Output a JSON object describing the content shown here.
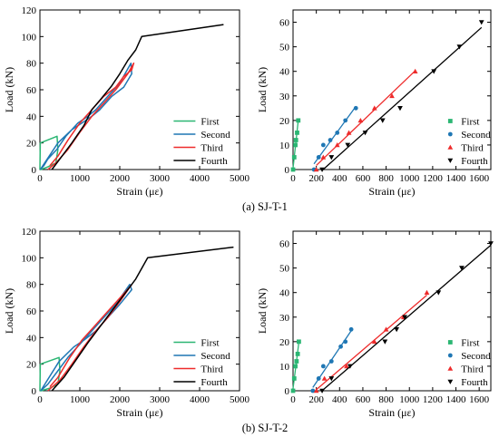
{
  "captions": [
    "(a) SJ-T-1",
    "(b) SJ-T-2"
  ],
  "colors": {
    "First": "#2bb673",
    "Second": "#1f77b4",
    "Third": "#ee2b2b",
    "Fourth": "#000000"
  },
  "chart_data": [
    {
      "type": "line",
      "panel": "a-left",
      "xlabel": "Strain (με)",
      "ylabel": "Load (kN)",
      "xlim": [
        0,
        5000
      ],
      "ylim": [
        0,
        120
      ],
      "xticks": [
        0,
        1000,
        2000,
        3000,
        4000,
        5000
      ],
      "yticks": [
        0,
        20,
        40,
        60,
        80,
        100,
        120
      ],
      "legend_position": "bottom-right",
      "series": [
        {
          "name": "First",
          "x": [
            0,
            10,
            430,
            450,
            400,
            200,
            20,
            0
          ],
          "y": [
            0,
            20,
            25,
            15,
            5,
            2,
            0,
            0
          ]
        },
        {
          "name": "Second",
          "x": [
            10,
            450,
            800,
            1050,
            1300,
            1500,
            1800,
            2100,
            2300,
            2280,
            2000,
            1700,
            1400,
            1200,
            950,
            650,
            420,
            200,
            100,
            10
          ],
          "y": [
            0,
            20,
            30,
            35,
            40,
            45,
            55,
            62,
            72,
            80,
            65,
            55,
            45,
            40,
            35,
            25,
            15,
            8,
            3,
            0
          ]
        },
        {
          "name": "Third",
          "x": [
            200,
            400,
            700,
            1000,
            1300,
            1600,
            1900,
            2200,
            2350,
            2300,
            2100,
            1900,
            1600,
            1300,
            1000,
            700,
            450,
            250
          ],
          "y": [
            0,
            5,
            15,
            28,
            40,
            50,
            60,
            72,
            80,
            75,
            70,
            62,
            55,
            45,
            35,
            22,
            10,
            3
          ]
        },
        {
          "name": "Fourth",
          "x": [
            300,
            500,
            800,
            1100,
            1300,
            1500,
            1800,
            2000,
            2200,
            2400,
            2550,
            4600
          ],
          "y": [
            0,
            8,
            20,
            33,
            45,
            52,
            63,
            72,
            82,
            90,
            100,
            109
          ]
        }
      ]
    },
    {
      "type": "scatter",
      "panel": "a-right",
      "xlabel": "Strain (με)",
      "ylabel": "Load (kN)",
      "xlim": [
        0,
        1700
      ],
      "ylim": [
        0,
        65
      ],
      "xticks": [
        0,
        200,
        400,
        600,
        800,
        1000,
        1200,
        1400,
        1600
      ],
      "yticks": [
        0,
        10,
        20,
        30,
        40,
        50,
        60
      ],
      "legend_position": "bottom-right",
      "series": [
        {
          "name": "First",
          "marker": "square",
          "x": [
            0,
            10,
            20,
            25,
            35,
            45
          ],
          "y": [
            0,
            5,
            10,
            12,
            15,
            20
          ]
        },
        {
          "name": "Second",
          "marker": "circle",
          "x": [
            180,
            220,
            260,
            320,
            380,
            450,
            540
          ],
          "y": [
            0,
            5,
            10,
            12,
            15,
            20,
            25
          ]
        },
        {
          "name": "Third",
          "marker": "triangle-up",
          "x": [
            200,
            260,
            380,
            480,
            580,
            700,
            850,
            1050
          ],
          "y": [
            0,
            5,
            10,
            15,
            20,
            25,
            30,
            40
          ]
        },
        {
          "name": "Fourth",
          "marker": "triangle-down",
          "x": [
            250,
            330,
            470,
            620,
            770,
            920,
            1210,
            1430,
            1620
          ],
          "y": [
            0,
            5,
            10,
            15,
            20,
            25,
            40,
            50,
            60
          ]
        }
      ]
    },
    {
      "type": "line",
      "panel": "b-left",
      "xlabel": "Strain (με)",
      "ylabel": "Load (kN)",
      "xlim": [
        0,
        5000
      ],
      "ylim": [
        0,
        120
      ],
      "xticks": [
        0,
        1000,
        2000,
        3000,
        4000,
        5000
      ],
      "yticks": [
        0,
        20,
        40,
        60,
        80,
        100,
        120
      ],
      "legend_position": "bottom-right",
      "series": [
        {
          "name": "First",
          "x": [
            0,
            10,
            480,
            500,
            450,
            250,
            30,
            0
          ],
          "y": [
            0,
            20,
            25,
            15,
            5,
            2,
            0,
            0
          ]
        },
        {
          "name": "Second",
          "x": [
            20,
            480,
            850,
            1100,
            1400,
            1700,
            2000,
            2300,
            2250,
            1900,
            1600,
            1300,
            1000,
            700,
            450,
            200,
            20
          ],
          "y": [
            0,
            22,
            33,
            38,
            45,
            55,
            65,
            76,
            80,
            65,
            55,
            45,
            35,
            25,
            15,
            5,
            0
          ]
        },
        {
          "name": "Third",
          "x": [
            200,
            500,
            800,
            1100,
            1400,
            1700,
            2000,
            2300,
            2250,
            1950,
            1650,
            1350,
            1050,
            750,
            450,
            250
          ],
          "y": [
            0,
            8,
            20,
            33,
            45,
            55,
            67,
            80,
            78,
            68,
            58,
            48,
            38,
            25,
            10,
            3
          ]
        },
        {
          "name": "Fourth",
          "x": [
            300,
            600,
            900,
            1200,
            1500,
            1800,
            2100,
            2400,
            2700,
            4850
          ],
          "y": [
            0,
            10,
            23,
            36,
            48,
            60,
            72,
            84,
            100,
            108
          ]
        }
      ]
    },
    {
      "type": "scatter",
      "panel": "b-right",
      "xlabel": "Strain (με)",
      "ylabel": "Load (kN)",
      "xlim": [
        0,
        1700
      ],
      "ylim": [
        0,
        65
      ],
      "xticks": [
        0,
        200,
        400,
        600,
        800,
        1000,
        1200,
        1400,
        1600
      ],
      "yticks": [
        0,
        10,
        20,
        30,
        40,
        50,
        60
      ],
      "legend_position": "bottom-right",
      "series": [
        {
          "name": "First",
          "marker": "square",
          "x": [
            0,
            10,
            20,
            30,
            40,
            50
          ],
          "y": [
            0,
            5,
            10,
            12,
            15,
            20
          ]
        },
        {
          "name": "Second",
          "marker": "circle",
          "x": [
            170,
            220,
            260,
            330,
            410,
            450,
            500
          ],
          "y": [
            0,
            5,
            10,
            12,
            18,
            20,
            25
          ]
        },
        {
          "name": "Third",
          "marker": "triangle-up",
          "x": [
            200,
            270,
            460,
            700,
            800,
            950,
            1150
          ],
          "y": [
            0,
            5,
            10,
            20,
            25,
            30,
            40
          ]
        },
        {
          "name": "Fourth",
          "marker": "triangle-down",
          "x": [
            250,
            330,
            490,
            790,
            890,
            960,
            1250,
            1450,
            1700
          ],
          "y": [
            0,
            5,
            10,
            20,
            25,
            30,
            40,
            50,
            60
          ]
        }
      ]
    }
  ]
}
